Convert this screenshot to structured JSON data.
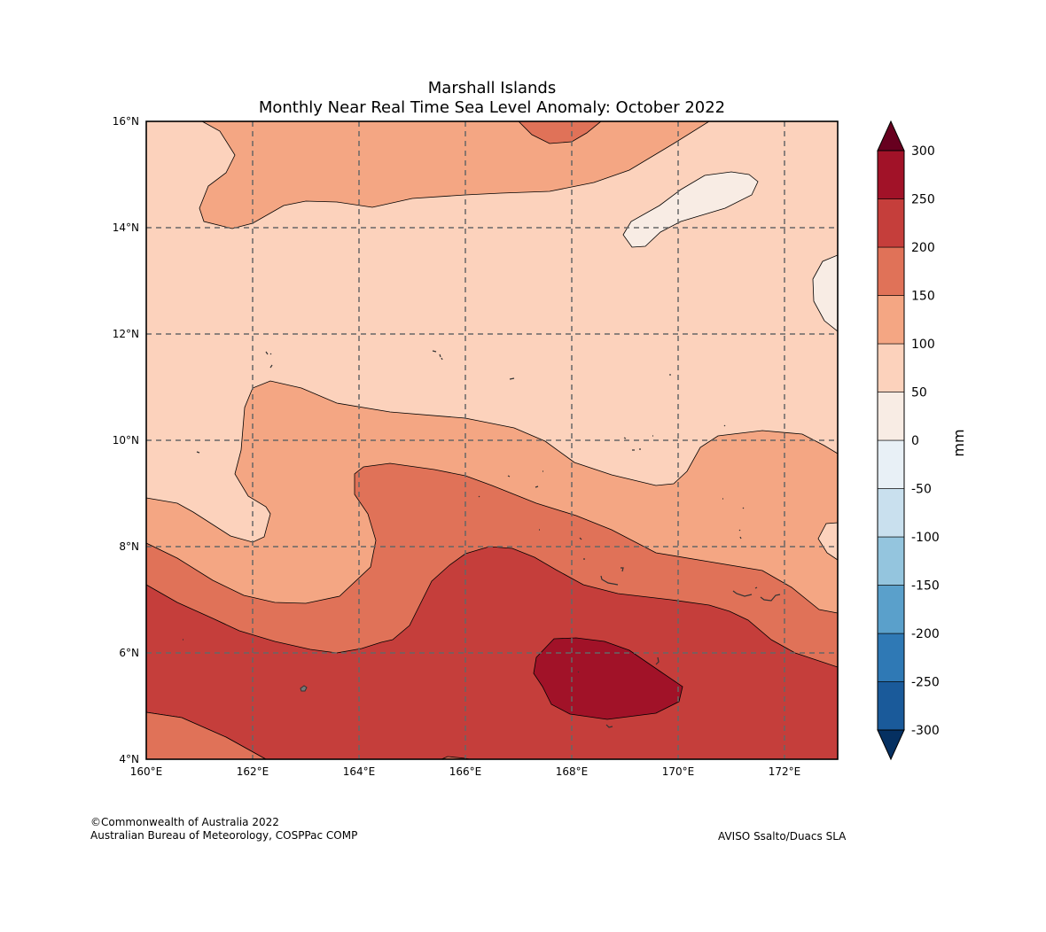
{
  "title": {
    "line1": "Marshall Islands",
    "line2": "Monthly Near Real Time Sea Level Anomaly: October 2022"
  },
  "map": {
    "lon_range": [
      160,
      173
    ],
    "lat_range": [
      4,
      16
    ],
    "x_ticks": [
      {
        "value": 160,
        "label": "160°E"
      },
      {
        "value": 162,
        "label": "162°E"
      },
      {
        "value": 164,
        "label": "164°E"
      },
      {
        "value": 166,
        "label": "166°E"
      },
      {
        "value": 168,
        "label": "168°E"
      },
      {
        "value": 170,
        "label": "170°E"
      },
      {
        "value": 172,
        "label": "172°E"
      }
    ],
    "y_ticks": [
      {
        "value": 4,
        "label": "4°N"
      },
      {
        "value": 6,
        "label": "6°N"
      },
      {
        "value": 8,
        "label": "8°N"
      },
      {
        "value": 10,
        "label": "10°N"
      },
      {
        "value": 12,
        "label": "12°N"
      },
      {
        "value": 14,
        "label": "14°N"
      },
      {
        "value": 16,
        "label": "16°N"
      }
    ],
    "grid": true
  },
  "colorbar": {
    "unit": "mm",
    "levels": [
      -300,
      -250,
      -200,
      -150,
      -100,
      -50,
      0,
      50,
      100,
      150,
      200,
      250,
      300
    ],
    "level_labels": [
      "-300",
      "-250",
      "-200",
      "-150",
      "-100",
      "-50",
      "0",
      "50",
      "100",
      "150",
      "200",
      "250",
      "300"
    ],
    "colors": [
      "#1a5a9a",
      "#2f79b5",
      "#5aa0cb",
      "#94c5de",
      "#c9e0ee",
      "#e8f0f6",
      "#f8ece4",
      "#fcd2bc",
      "#f4a683",
      "#e07258",
      "#c53e3b",
      "#a11228"
    ],
    "over_color": "#67001f",
    "under_color": "#053061"
  },
  "footer": {
    "copyright": "©Commonwealth of Australia 2022",
    "agency": "Australian Bureau of Meteorology, COSPPac COMP",
    "source": "AVISO Ssalto/Duacs SLA"
  }
}
